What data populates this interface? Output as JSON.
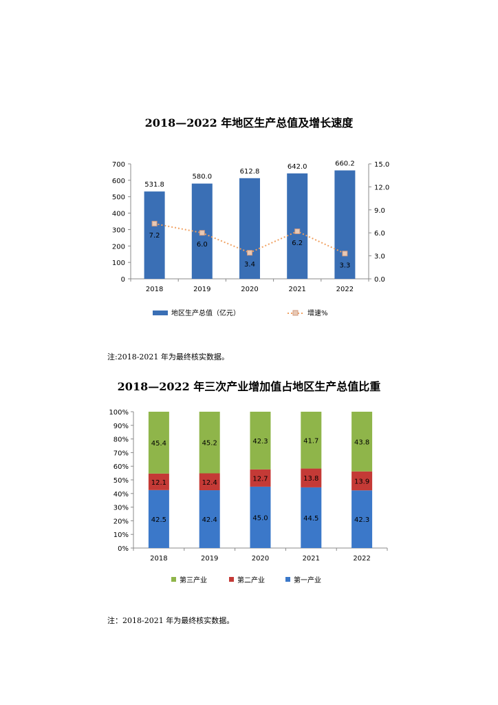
{
  "chart_data": [
    {
      "type": "bar",
      "title": "2018—2022 年地区生产总值及增长速度",
      "categories": [
        "2018",
        "2019",
        "2020",
        "2021",
        "2022"
      ],
      "series": [
        {
          "name": "地区生产总值（亿元）",
          "type": "bar",
          "values": [
            531.8,
            580.0,
            612.8,
            642.0,
            660.2
          ],
          "labels": [
            "531.8",
            "580.0",
            "612.8",
            "642.0",
            "660.2"
          ],
          "color": "#3a6fb5"
        },
        {
          "name": "增速%",
          "type": "line",
          "axis": "right",
          "values": [
            7.2,
            6.0,
            3.4,
            6.2,
            3.3
          ],
          "labels": [
            "7.2",
            "6.0",
            "3.4",
            "6.2",
            "3.3"
          ],
          "color": "#f0a060"
        }
      ],
      "ylim": [
        0,
        700
      ],
      "y_ticks": [
        "0",
        "100",
        "200",
        "300",
        "400",
        "500",
        "600",
        "700"
      ],
      "y2lim": [
        0,
        15
      ],
      "y2_ticks": [
        "0.0",
        "3.0",
        "6.0",
        "9.0",
        "12.0",
        "15.0"
      ],
      "legend": "bottom",
      "grid": false,
      "note": "注:2018-2021 年为最终核实数据。"
    },
    {
      "type": "bar",
      "stacked": true,
      "title": "2018—2022 年三次产业增加值占地区生产总值比重",
      "categories": [
        "2018",
        "2019",
        "2020",
        "2021",
        "2022"
      ],
      "series": [
        {
          "name": "第一产业",
          "values": [
            42.5,
            42.4,
            45.0,
            44.5,
            42.3
          ],
          "labels": [
            "42.5",
            "42.4",
            "45.0",
            "44.5",
            "42.3"
          ],
          "color": "#3b78c9"
        },
        {
          "name": "第二产业",
          "values": [
            12.1,
            12.4,
            12.7,
            13.8,
            13.9
          ],
          "labels": [
            "12.1",
            "12.4",
            "12.7",
            "13.8",
            "13.9"
          ],
          "color": "#c43a36"
        },
        {
          "name": "第三产业",
          "values": [
            45.4,
            45.2,
            42.3,
            41.7,
            43.8
          ],
          "labels": [
            "45.4",
            "45.2",
            "42.3",
            "41.7",
            "43.8"
          ],
          "color": "#8fb54a"
        }
      ],
      "ylim": [
        0,
        100
      ],
      "y_ticks": [
        "0%",
        "10%",
        "20%",
        "30%",
        "40%",
        "50%",
        "60%",
        "70%",
        "80%",
        "90%",
        "100%"
      ],
      "legend": "bottom",
      "legend_order": [
        "第三产业",
        "第二产业",
        "第一产业"
      ],
      "grid": false,
      "note": "注：2018-2021 年为最终核实数据。"
    }
  ]
}
